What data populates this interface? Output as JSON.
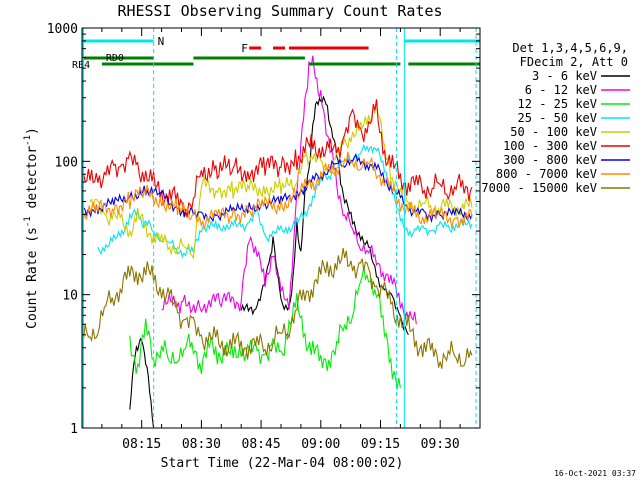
{
  "chart_data": {
    "type": "line",
    "title": "RHESSI Observing Summary Count Rates",
    "xlabel": "Start Time (22-Mar-04 08:00:02)",
    "ylabel": "Count Rate (s",
    "ylabel_sup": "-1",
    "ylabel_tail": " detector",
    "ylabel_sup2": "-1",
    "ylabel_close": ")",
    "y_scale": "log",
    "ylim": [
      1,
      1000
    ],
    "xlim_minutes": [
      0,
      100
    ],
    "y_ticks": [
      {
        "v": 1,
        "label": "1"
      },
      {
        "v": 10,
        "label": "10"
      },
      {
        "v": 100,
        "label": "100"
      },
      {
        "v": 1000,
        "label": "1000"
      }
    ],
    "x_ticks": [
      {
        "m": 15,
        "label": "08:15"
      },
      {
        "m": 30,
        "label": "08:30"
      },
      {
        "m": 45,
        "label": "08:45"
      },
      {
        "m": 60,
        "label": "09:00"
      },
      {
        "m": 75,
        "label": "09:15"
      },
      {
        "m": 90,
        "label": "09:30"
      }
    ],
    "legend_header": [
      "Det 1,3,4,5,6,9,",
      "FDecim 2, Att 0"
    ],
    "legend_placement": "right",
    "timestamp": "16-Oct-2021 03:37",
    "annotations": {
      "N": {
        "label": "N",
        "color": "#00e5ee",
        "segments": [
          [
            0,
            18
          ],
          [
            81,
            100
          ]
        ]
      },
      "F": {
        "label": "F",
        "color": "#ee0000",
        "segments": [
          [
            42,
            45
          ],
          [
            48,
            51
          ],
          [
            52,
            72
          ]
        ]
      },
      "RD0": {
        "label": "RD0",
        "color": "#008000",
        "segments": [
          [
            0,
            18
          ],
          [
            28,
            56
          ]
        ]
      },
      "RB4": {
        "label": "RB4",
        "color": "#008000",
        "segments": [
          [
            5,
            28
          ],
          [
            57,
            80
          ],
          [
            82,
            100
          ]
        ]
      },
      "vlines_solid": [
        81
      ],
      "vlines_dashed": [
        18,
        79,
        99
      ]
    },
    "series": [
      {
        "name": "3 - 6 keV",
        "color": "#000000",
        "x": [
          0,
          10,
          12,
          13,
          14,
          15,
          16,
          17,
          18,
          19,
          30,
          40,
          44,
          47,
          48,
          50,
          52,
          53,
          54,
          55,
          56,
          57,
          58,
          59,
          60,
          61,
          62,
          63,
          64,
          65,
          66,
          68,
          70,
          72,
          74,
          76,
          78,
          80,
          82,
          84
        ],
        "y": [
          null,
          null,
          1.5,
          3,
          4,
          5,
          3,
          2,
          1,
          null,
          null,
          7.5,
          8,
          18,
          25,
          9,
          8,
          12,
          35,
          20,
          55,
          90,
          180,
          280,
          300,
          280,
          220,
          160,
          110,
          75,
          50,
          35,
          28,
          22,
          14,
          11,
          9,
          7,
          5,
          null
        ]
      },
      {
        "name": "6 - 12 keV",
        "color": "#ee00ee",
        "x": [
          0,
          10,
          12,
          15,
          20,
          25,
          30,
          35,
          40,
          42,
          44,
          46,
          48,
          50,
          52,
          54,
          55,
          56,
          57,
          58,
          59,
          60,
          61,
          62,
          63,
          64,
          66,
          68,
          70,
          72,
          74,
          76,
          78,
          80,
          82,
          84,
          86
        ],
        "y": [
          null,
          null,
          null,
          null,
          8.5,
          8.5,
          8.5,
          9,
          9,
          30,
          20,
          12,
          22,
          10,
          8,
          60,
          120,
          300,
          500,
          540,
          420,
          290,
          200,
          150,
          100,
          70,
          40,
          30,
          25,
          21,
          18,
          15,
          12,
          9,
          7,
          6,
          null
        ]
      },
      {
        "name": "12 - 25 keV",
        "color": "#00ee00",
        "x": [
          0,
          10,
          12,
          14,
          16,
          18,
          20,
          22,
          24,
          26,
          28,
          30,
          32,
          34,
          36,
          38,
          40,
          42,
          44,
          46,
          48,
          50,
          52,
          54,
          56,
          58,
          60,
          62,
          64,
          66,
          68,
          70,
          72,
          74,
          76,
          78,
          80,
          82
        ],
        "y": [
          null,
          null,
          4.5,
          3,
          5.5,
          3.5,
          4.2,
          3,
          3.8,
          4,
          4,
          3.2,
          4,
          3.6,
          4,
          3.2,
          4,
          3.8,
          3.5,
          3.8,
          3.8,
          3.5,
          6,
          8,
          5,
          4,
          3,
          3.5,
          4,
          6,
          8,
          12,
          15,
          11,
          5,
          3,
          2,
          null
        ]
      },
      {
        "name": "25 - 50 keV",
        "color": "#00e5ee",
        "x": [
          0,
          4,
          6,
          8,
          10,
          12,
          14,
          15,
          16,
          18,
          20,
          22,
          24,
          26,
          28,
          30,
          32,
          34,
          36,
          38,
          40,
          42,
          44,
          46,
          48,
          50,
          52,
          54,
          56,
          58,
          60,
          62,
          64,
          66,
          68,
          70,
          72,
          73,
          74,
          76,
          78,
          80,
          82,
          84,
          86,
          88,
          90,
          92,
          94,
          96,
          98
        ],
        "y": [
          null,
          22,
          23,
          25,
          30,
          38,
          40,
          36,
          34,
          30,
          27,
          24,
          22,
          21,
          21,
          33,
          32,
          32,
          33,
          32,
          33,
          35,
          40,
          28,
          28,
          30,
          32,
          34,
          40,
          55,
          70,
          80,
          90,
          100,
          110,
          115,
          125,
          130,
          120,
          90,
          60,
          35,
          30,
          30,
          30,
          31,
          32,
          32,
          33,
          33,
          34
        ]
      },
      {
        "name": "50 - 100 keV",
        "color": "#cdcd00",
        "x": [
          0,
          2,
          4,
          6,
          8,
          10,
          12,
          14,
          16,
          18,
          20,
          22,
          24,
          26,
          28,
          30,
          34,
          38,
          42,
          46,
          50,
          54,
          56,
          58,
          60,
          62,
          64,
          66,
          68,
          70,
          72,
          74,
          76,
          78,
          80,
          82,
          84,
          86,
          88,
          90,
          92,
          94,
          96,
          98
        ],
        "y": [
          null,
          50,
          44,
          40,
          38,
          35,
          30,
          38,
          32,
          28,
          25,
          24,
          23,
          22,
          22,
          65,
          63,
          62,
          62,
          64,
          62,
          66,
          120,
          100,
          95,
          88,
          100,
          140,
          160,
          165,
          220,
          270,
          120,
          80,
          58,
          50,
          47,
          47,
          47,
          46,
          46,
          46,
          45,
          45
        ]
      },
      {
        "name": "100 - 300 keV",
        "color": "#ee0000",
        "x": [
          0,
          2,
          4,
          6,
          8,
          10,
          12,
          14,
          16,
          18,
          20,
          22,
          24,
          26,
          28,
          30,
          34,
          38,
          42,
          46,
          50,
          54,
          56,
          58,
          60,
          62,
          64,
          66,
          68,
          70,
          72,
          74,
          76,
          78,
          80,
          82,
          84,
          86,
          88,
          90,
          92,
          94,
          96,
          98
        ],
        "y": [
          70,
          68,
          80,
          75,
          85,
          100,
          95,
          90,
          80,
          65,
          60,
          55,
          50,
          48,
          48,
          88,
          87,
          86,
          88,
          90,
          92,
          110,
          120,
          130,
          125,
          115,
          120,
          160,
          200,
          180,
          170,
          240,
          120,
          90,
          75,
          70,
          67,
          66,
          65,
          65,
          65,
          64,
          64,
          64
        ]
      },
      {
        "name": "300 - 800 keV",
        "color": "#0000ee",
        "x": [
          0,
          4,
          8,
          12,
          16,
          20,
          24,
          28,
          30,
          34,
          38,
          42,
          46,
          50,
          54,
          56,
          58,
          60,
          62,
          64,
          66,
          68,
          70,
          72,
          74,
          76,
          78,
          80,
          82,
          84,
          86,
          90,
          94,
          98
        ],
        "y": [
          42,
          45,
          48,
          55,
          60,
          55,
          45,
          40,
          38,
          40,
          42,
          45,
          48,
          50,
          58,
          65,
          72,
          80,
          88,
          95,
          100,
          102,
          100,
          96,
          88,
          75,
          62,
          52,
          45,
          41,
          40,
          40,
          40,
          40
        ]
      },
      {
        "name": "800 - 7000 keV",
        "color": "#ff8c00",
        "x": [
          0,
          4,
          8,
          12,
          16,
          20,
          24,
          28,
          30,
          34,
          38,
          42,
          46,
          50,
          54,
          56,
          58,
          60,
          62,
          64,
          66,
          68,
          70,
          72,
          74,
          76,
          78,
          80,
          82,
          84,
          86,
          90,
          94,
          98
        ],
        "y": [
          40,
          43,
          46,
          52,
          57,
          52,
          43,
          38,
          36,
          38,
          40,
          43,
          46,
          48,
          55,
          62,
          70,
          78,
          86,
          93,
          98,
          100,
          98,
          94,
          86,
          73,
          60,
          50,
          43,
          39,
          38,
          38,
          38,
          38
        ]
      },
      {
        "name": "7000 - 15000 keV",
        "color": "#8b7500",
        "x": [
          0,
          2,
          4,
          6,
          8,
          10,
          12,
          14,
          16,
          18,
          20,
          22,
          24,
          26,
          28,
          30,
          32,
          34,
          36,
          38,
          40,
          42,
          44,
          46,
          48,
          50,
          52,
          54,
          56,
          58,
          60,
          62,
          64,
          66,
          68,
          70,
          72,
          74,
          76,
          78,
          80,
          82,
          84,
          86,
          88,
          90,
          92,
          94,
          96,
          98
        ],
        "y": [
          4.5,
          5,
          6,
          8,
          10,
          12,
          14,
          15,
          14.5,
          13,
          11,
          9,
          7.5,
          6.5,
          5.5,
          5,
          4.5,
          4.5,
          4.2,
          4.2,
          4.2,
          4.2,
          4.2,
          4.3,
          4.5,
          5,
          6,
          8,
          10,
          12,
          14,
          16,
          17,
          17.5,
          17,
          16,
          14,
          12,
          10,
          8,
          6.5,
          5.5,
          4.5,
          4,
          3.8,
          3.5,
          3.5,
          3.5,
          3.5,
          3.5
        ]
      }
    ]
  }
}
